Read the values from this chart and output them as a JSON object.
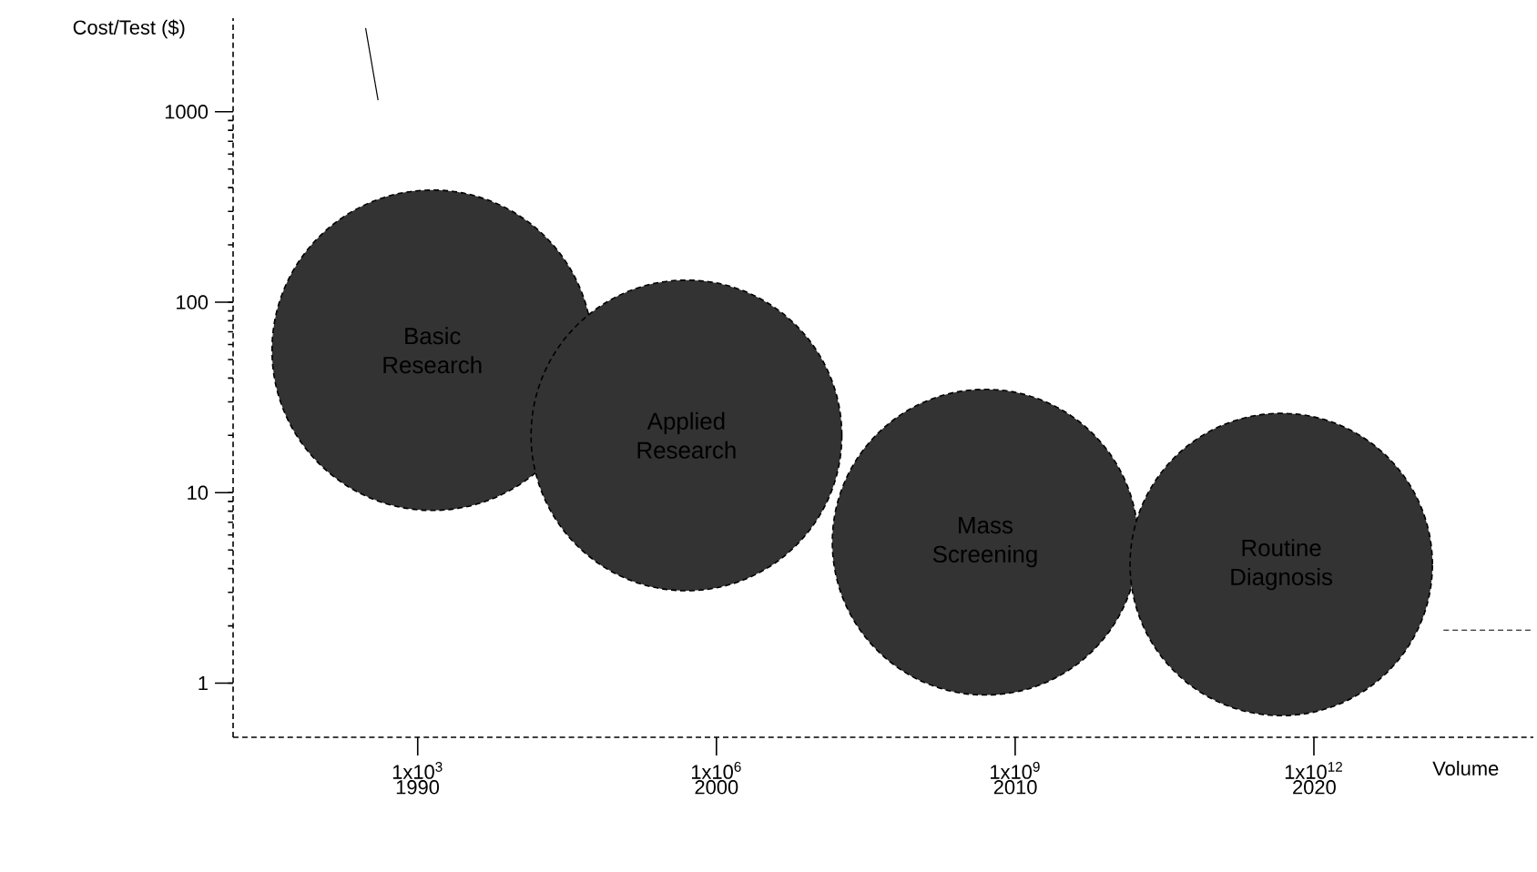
{
  "chart_data": {
    "type": "bubble",
    "log": "xy",
    "xlabel": "Volume",
    "ylabel": "Cost/Test ($)",
    "xlim": [
      14,
      160000000000000
    ],
    "ylim": [
      0.52,
      3100
    ],
    "xticks": [
      {
        "value": 1000,
        "label": "1x10$^{3}$"
      },
      {
        "value": 1000000,
        "label": "1x10$^{6}$"
      },
      {
        "value": 1000000000,
        "label": "1x10$^{9}$"
      },
      {
        "value": 1000000000000,
        "label": "1x10$^{12}$"
      }
    ],
    "x2lim": [
      1983.83,
      2027.33
    ],
    "x2ticks": [
      1990,
      2000,
      2010,
      2020
    ],
    "yticks": [
      {
        "value": 1,
        "label": "1"
      },
      {
        "value": 10,
        "label": "10"
      },
      {
        "value": 100,
        "label": "100"
      },
      {
        "value": 1000,
        "label": "1000"
      }
    ],
    "series": [
      {
        "type": "line",
        "color": "#000000",
        "line_style": "solid",
        "x": [
          300,
          400
        ],
        "values": [
          2750,
          1150
        ]
      },
      {
        "type": "line",
        "color": "#000000",
        "line_style": "dashed",
        "x": [
          20000000000000,
          160000000000000
        ],
        "values": [
          1.9,
          1.9
        ]
      },
      {
        "name": "Basic Research",
        "color": "#333333",
        "x": [
          1400
        ],
        "values": [
          56
        ],
        "sizes": [
          1
        ]
      },
      {
        "name": "Applied Research",
        "color": "#333333",
        "x": [
          500000
        ],
        "values": [
          20
        ],
        "sizes": [
          0.94
        ]
      },
      {
        "name": "Mass Screening",
        "color": "#333333",
        "x": [
          500000000
        ],
        "values": [
          5.5
        ],
        "sizes": [
          0.91
        ]
      },
      {
        "name": "Routine Diagnosis",
        "color": "#333333",
        "x": [
          470000000000
        ],
        "values": [
          4.2
        ],
        "sizes": [
          0.89
        ]
      }
    ]
  }
}
